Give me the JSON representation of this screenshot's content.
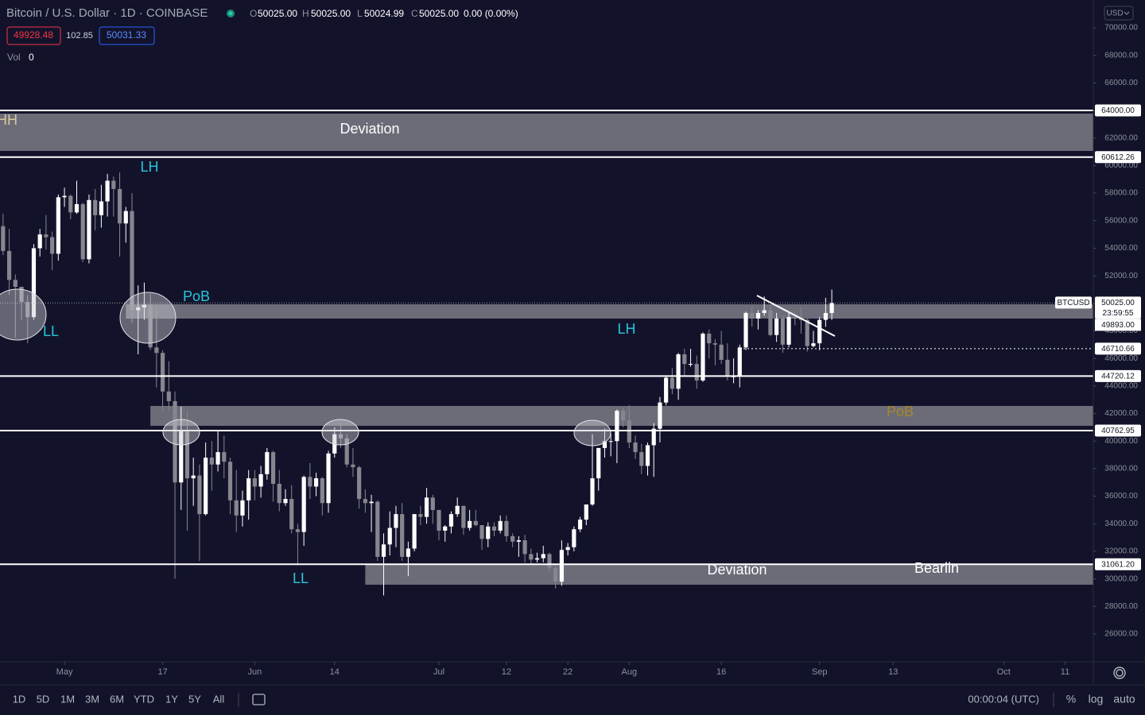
{
  "header": {
    "title": "Bitcoin / U.S. Dollar · 1D · COINBASE",
    "ohlc": [
      {
        "key": "O",
        "value": "50025.00"
      },
      {
        "key": "H",
        "value": "50025.00"
      },
      {
        "key": "L",
        "value": "50024.99"
      },
      {
        "key": "C",
        "value": "50025.00"
      }
    ],
    "change": "0.00 (0.00%)",
    "bid": "49928.48",
    "spread": "102.85",
    "ask": "50031.33",
    "volume_label": "Vol",
    "volume_value": "0",
    "currency": "USD"
  },
  "toolbar": {
    "timeframes": [
      "1D",
      "5D",
      "1M",
      "3M",
      "6M",
      "YTD",
      "1Y",
      "5Y",
      "All"
    ],
    "clock": "00:00:04 (UTC)",
    "options": [
      "%",
      "log",
      "auto"
    ]
  },
  "chart_data": {
    "type": "candlestick",
    "symbol": "BTCUSD",
    "up_color": "#ffffff",
    "down_color": "#85868e",
    "xlim": [
      -0.5,
      177.6
    ],
    "ylim": [
      23982,
      72018
    ],
    "xticks": [
      {
        "value": 10,
        "label": "May"
      },
      {
        "value": 26,
        "label": "17"
      },
      {
        "value": 41,
        "label": "Jun"
      },
      {
        "value": 54,
        "label": "14"
      },
      {
        "value": 71,
        "label": "Jul"
      },
      {
        "value": 82,
        "label": "12"
      },
      {
        "value": 92,
        "label": "22"
      },
      {
        "value": 102,
        "label": "Aug"
      },
      {
        "value": 117,
        "label": "16"
      },
      {
        "value": 133,
        "label": "Sep"
      },
      {
        "value": 145,
        "label": "13"
      },
      {
        "value": 163,
        "label": "Oct"
      },
      {
        "value": 173,
        "label": "11"
      }
    ],
    "yticks": [
      {
        "value": 70000,
        "label": "70000.00"
      },
      {
        "value": 68000,
        "label": "68000.00"
      },
      {
        "value": 66000,
        "label": "66000.00"
      },
      {
        "value": 64000,
        "label": "64000.00"
      },
      {
        "value": 62000,
        "label": "62000.00"
      },
      {
        "value": 60000,
        "label": "60000.00"
      },
      {
        "value": 58000,
        "label": "58000.00"
      },
      {
        "value": 56000,
        "label": "56000.00"
      },
      {
        "value": 54000,
        "label": "54000.00"
      },
      {
        "value": 52000,
        "label": "52000.00"
      },
      {
        "value": 50000,
        "label": "50000.00"
      },
      {
        "value": 48000,
        "label": "48000.00"
      },
      {
        "value": 46000,
        "label": "46000.00"
      },
      {
        "value": 44000,
        "label": "44000.00"
      },
      {
        "value": 42000,
        "label": "42000.00"
      },
      {
        "value": 40000,
        "label": "40000.00"
      },
      {
        "value": 38000,
        "label": "38000.00"
      },
      {
        "value": 36000,
        "label": "36000.00"
      },
      {
        "value": 34000,
        "label": "34000.00"
      },
      {
        "value": 32000,
        "label": "32000.00"
      },
      {
        "value": 30000,
        "label": "30000.00"
      },
      {
        "value": 28000,
        "label": "28000.00"
      },
      {
        "value": 26000,
        "label": "26000.00"
      }
    ],
    "candles": [
      [
        55600,
        56500,
        53500,
        53800
      ],
      [
        53800,
        55400,
        50600,
        51700
      ],
      [
        51700,
        52100,
        47500,
        51200
      ],
      [
        51200,
        51200,
        48800,
        50100
      ],
      [
        50100,
        50600,
        47100,
        49000
      ],
      [
        49000,
        54300,
        48800,
        54000
      ],
      [
        54000,
        55400,
        53400,
        55000
      ],
      [
        55000,
        56400,
        53900,
        54800
      ],
      [
        54800,
        55200,
        52400,
        53600
      ],
      [
        53600,
        57900,
        53100,
        57700
      ],
      [
        57700,
        58400,
        57000,
        57800
      ],
      [
        57800,
        57900,
        56100,
        56600
      ],
      [
        56600,
        58900,
        56500,
        57200
      ],
      [
        57200,
        57300,
        53000,
        53200
      ],
      [
        53200,
        57900,
        52900,
        57500
      ],
      [
        57500,
        58300,
        55300,
        56400
      ],
      [
        56400,
        58600,
        55500,
        57400
      ],
      [
        57400,
        59400,
        56300,
        58900
      ],
      [
        58900,
        59200,
        56300,
        58300
      ],
      [
        58300,
        59500,
        53400,
        55800
      ],
      [
        55800,
        57000,
        54400,
        56700
      ],
      [
        56700,
        58000,
        48600,
        49500
      ],
      [
        49500,
        51300,
        46300,
        49700
      ],
      [
        49700,
        51500,
        48800,
        49900
      ],
      [
        49900,
        50700,
        46600,
        46800
      ],
      [
        46800,
        49800,
        43900,
        46400
      ],
      [
        46400,
        46600,
        42200,
        43600
      ],
      [
        43600,
        45800,
        42200,
        42900
      ],
      [
        42900,
        43600,
        30000,
        37000
      ],
      [
        37000,
        42500,
        35000,
        40700
      ],
      [
        40700,
        42200,
        33500,
        37300
      ],
      [
        37300,
        38800,
        35300,
        37500
      ],
      [
        37500,
        38300,
        31300,
        34700
      ],
      [
        34700,
        39900,
        34600,
        38800
      ],
      [
        38800,
        40000,
        36400,
        38300
      ],
      [
        38300,
        40800,
        37800,
        39200
      ],
      [
        39200,
        40400,
        37300,
        38500
      ],
      [
        38500,
        38800,
        34700,
        35700
      ],
      [
        35700,
        37900,
        33400,
        34600
      ],
      [
        34600,
        36400,
        33800,
        35700
      ],
      [
        35700,
        37900,
        34300,
        37300
      ],
      [
        37300,
        37900,
        35700,
        36700
      ],
      [
        36700,
        38200,
        35900,
        37600
      ],
      [
        37600,
        39500,
        37200,
        39200
      ],
      [
        39200,
        39300,
        35600,
        36900
      ],
      [
        36900,
        37900,
        34900,
        35500
      ],
      [
        35500,
        36500,
        35300,
        35800
      ],
      [
        35800,
        36800,
        33300,
        33600
      ],
      [
        33600,
        34000,
        31000,
        33400
      ],
      [
        33400,
        37500,
        32400,
        37400
      ],
      [
        37400,
        38400,
        35800,
        36700
      ],
      [
        36700,
        37700,
        36000,
        37300
      ],
      [
        37300,
        37400,
        34600,
        35500
      ],
      [
        35500,
        39300,
        34800,
        39100
      ],
      [
        39100,
        41000,
        38800,
        40500
      ],
      [
        40500,
        41300,
        39500,
        40200
      ],
      [
        40200,
        40500,
        38100,
        38300
      ],
      [
        38300,
        39500,
        37400,
        38100
      ],
      [
        38100,
        38200,
        35100,
        35800
      ],
      [
        35800,
        36500,
        34800,
        35500
      ],
      [
        35500,
        36100,
        33400,
        35600
      ],
      [
        35600,
        35700,
        31300,
        31600
      ],
      [
        31600,
        33300,
        28800,
        32500
      ],
      [
        32500,
        34900,
        31700,
        33700
      ],
      [
        33700,
        35300,
        32300,
        34700
      ],
      [
        34700,
        35500,
        31300,
        31600
      ],
      [
        31600,
        32700,
        30200,
        32200
      ],
      [
        32200,
        34700,
        32000,
        34700
      ],
      [
        34700,
        35300,
        33900,
        34500
      ],
      [
        34500,
        36600,
        34000,
        35900
      ],
      [
        35900,
        36100,
        34000,
        35000
      ],
      [
        35000,
        35000,
        32800,
        33500
      ],
      [
        33500,
        33900,
        32700,
        33800
      ],
      [
        33800,
        34900,
        33300,
        34700
      ],
      [
        34700,
        35900,
        34500,
        35300
      ],
      [
        35300,
        35300,
        33200,
        33700
      ],
      [
        33700,
        35000,
        33500,
        34200
      ],
      [
        34200,
        35000,
        33800,
        33900
      ],
      [
        33900,
        33900,
        32100,
        32900
      ],
      [
        32900,
        34100,
        32300,
        33800
      ],
      [
        33800,
        34100,
        33100,
        33500
      ],
      [
        33500,
        34600,
        33300,
        34200
      ],
      [
        34200,
        34600,
        32700,
        33100
      ],
      [
        33100,
        33300,
        32300,
        32700
      ],
      [
        32700,
        33100,
        31600,
        32800
      ],
      [
        32800,
        33200,
        31200,
        31800
      ],
      [
        31800,
        32200,
        31100,
        31400
      ],
      [
        31400,
        31900,
        31200,
        31500
      ],
      [
        31500,
        32400,
        31200,
        31800
      ],
      [
        31800,
        31900,
        30500,
        30800
      ],
      [
        30800,
        31000,
        29300,
        29800
      ],
      [
        29800,
        32800,
        29500,
        32100
      ],
      [
        32100,
        32600,
        31700,
        32300
      ],
      [
        32300,
        33800,
        32000,
        33600
      ],
      [
        33600,
        34500,
        33400,
        34300
      ],
      [
        34300,
        35400,
        33900,
        35400
      ],
      [
        35400,
        40500,
        35300,
        37300
      ],
      [
        37300,
        39500,
        36400,
        39500
      ],
      [
        39500,
        40900,
        38800,
        40000
      ],
      [
        40000,
        40600,
        38900,
        40000
      ],
      [
        40000,
        42300,
        38400,
        42200
      ],
      [
        42200,
        42400,
        41000,
        41500
      ],
      [
        41500,
        42600,
        39500,
        39900
      ],
      [
        39900,
        40400,
        38700,
        39200
      ],
      [
        39200,
        39800,
        37600,
        38200
      ],
      [
        38200,
        39900,
        37500,
        39700
      ],
      [
        39700,
        41300,
        37400,
        40900
      ],
      [
        40900,
        43200,
        39900,
        42800
      ],
      [
        42800,
        44700,
        42600,
        44600
      ],
      [
        44600,
        45300,
        43400,
        43800
      ],
      [
        43800,
        46400,
        43000,
        46300
      ],
      [
        46300,
        46700,
        44700,
        45600
      ],
      [
        45600,
        46700,
        45400,
        45600
      ],
      [
        45600,
        46200,
        43800,
        44400
      ],
      [
        44400,
        47900,
        44300,
        47800
      ],
      [
        47800,
        48100,
        46000,
        47100
      ],
      [
        47100,
        47400,
        45500,
        47000
      ],
      [
        47000,
        48000,
        45600,
        45900
      ],
      [
        45900,
        47100,
        44400,
        44700
      ],
      [
        44700,
        46000,
        44200,
        44700
      ],
      [
        44700,
        47000,
        43900,
        46800
      ],
      [
        46800,
        49400,
        46600,
        49300
      ],
      [
        49300,
        49800,
        48300,
        48900
      ],
      [
        48900,
        49500,
        48100,
        49300
      ],
      [
        49300,
        50500,
        49100,
        49500
      ],
      [
        49500,
        49900,
        47600,
        47700
      ],
      [
        47700,
        49300,
        47200,
        48900
      ],
      [
        48900,
        49100,
        46400,
        47000
      ],
      [
        47000,
        49400,
        46800,
        49000
      ],
      [
        49000,
        49300,
        48400,
        48900
      ],
      [
        48900,
        49700,
        47800,
        48800
      ],
      [
        48800,
        48900,
        46500,
        46900
      ],
      [
        46900,
        48000,
        46800,
        47100
      ],
      [
        47100,
        49000,
        46600,
        48800
      ],
      [
        48800,
        50400,
        48300,
        49300
      ],
      [
        49300,
        51000,
        48800,
        50025
      ]
    ],
    "zones": [
      {
        "from": 61062,
        "to": 63772,
        "start": -0.5
      },
      {
        "from": 48894,
        "to": 49932,
        "start": 20
      },
      {
        "from": 41109,
        "to": 42551,
        "start": 24
      },
      {
        "from": 29576,
        "to": 31076,
        "start": 59
      }
    ],
    "levels": [
      {
        "value": 64000,
        "label": "64000.00",
        "style": "solid"
      },
      {
        "value": 60612.26,
        "label": "60612.26",
        "style": "solid"
      },
      {
        "value": 46710.66,
        "label": "46710.66",
        "style": "dotted"
      },
      {
        "value": 44720.12,
        "label": "44720.12",
        "style": "solid"
      },
      {
        "value": 40762.95,
        "label": "40762.95",
        "style": "solid"
      },
      {
        "value": 31061.2,
        "label": "31061.20",
        "style": "solid"
      }
    ],
    "last_price": {
      "value": 50025,
      "label": "50025.00",
      "countdown": "23:59:55"
    },
    "extra_tag": {
      "value": 49893,
      "label": "49893.00"
    },
    "annotations": [
      "HH",
      "Deviation",
      "LH",
      "PoB",
      "LL",
      "LH",
      "PoB",
      "LL",
      "Deviation",
      "Bearlin"
    ]
  }
}
